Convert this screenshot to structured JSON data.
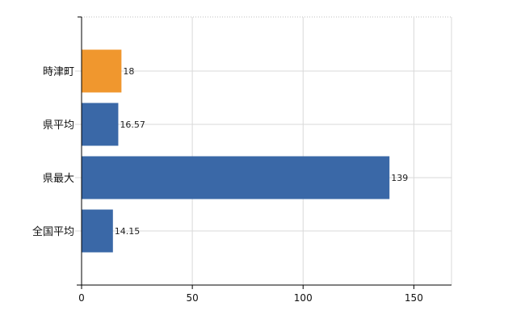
{
  "chart_data": {
    "type": "bar",
    "orientation": "horizontal",
    "title": "",
    "xlabel": "",
    "ylabel": "",
    "categories": [
      "時津町",
      "県平均",
      "県最大",
      "全国平均"
    ],
    "values": [
      18,
      16.57,
      139,
      14.15
    ],
    "value_labels": [
      "18",
      "16.57",
      "139",
      "14.15"
    ],
    "bar_colors": [
      "#F0972E",
      "#3A68A7",
      "#3A68A7",
      "#3A68A7"
    ],
    "xlim": [
      0,
      167
    ],
    "xticks": [
      0,
      50,
      100,
      150
    ],
    "xtick_labels": [
      "0",
      "50",
      "100",
      "150"
    ],
    "grid": true,
    "legend": "none"
  }
}
